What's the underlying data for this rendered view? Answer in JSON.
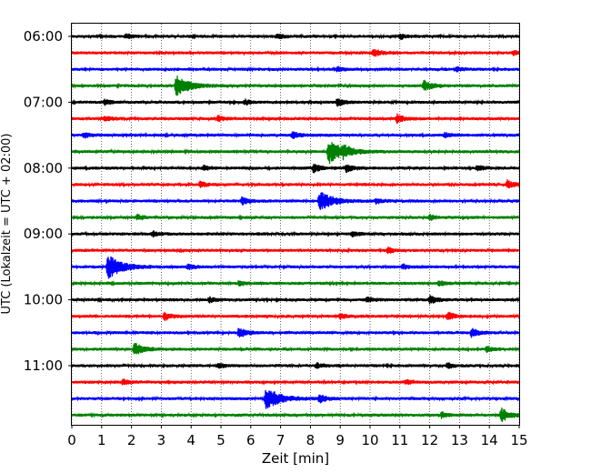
{
  "chart_data": {
    "type": "line",
    "title": "",
    "xlabel": "Zeit  [min]",
    "ylabel": "UTC (Lokalzeit = UTC + 02:00)",
    "xlim": [
      0,
      15
    ],
    "x_ticks": [
      "0",
      "1",
      "2",
      "3",
      "4",
      "5",
      "6",
      "7",
      "8",
      "9",
      "10",
      "11",
      "12",
      "13",
      "14",
      "15"
    ],
    "y_ticks": [
      "06:00",
      "07:00",
      "08:00",
      "09:00",
      "10:00",
      "11:00"
    ],
    "vertical_grid": "dotted",
    "trace_interval_minutes": 15,
    "trace_colors": [
      "#000000",
      "#ff0000",
      "#0000ff",
      "#008000"
    ],
    "traces": [
      {
        "start": "06:00",
        "events": [
          {
            "x": 1.8,
            "amp": 0.2
          },
          {
            "x": 6.9,
            "amp": 0.2
          },
          {
            "x": 11.0,
            "amp": 0.2
          }
        ]
      },
      {
        "start": "06:15",
        "events": [
          {
            "x": 10.1,
            "amp": 0.3
          },
          {
            "x": 14.8,
            "amp": 0.2
          }
        ]
      },
      {
        "start": "06:30",
        "events": [
          {
            "x": 8.9,
            "amp": 0.2
          },
          {
            "x": 12.9,
            "amp": 0.2
          }
        ]
      },
      {
        "start": "06:45",
        "events": [
          {
            "x": 3.5,
            "amp": 0.8
          },
          {
            "x": 11.8,
            "amp": 0.4
          }
        ]
      },
      {
        "start": "07:00",
        "events": [
          {
            "x": 1.1,
            "amp": 0.2
          },
          {
            "x": 5.8,
            "amp": 0.2
          },
          {
            "x": 8.9,
            "amp": 0.3
          }
        ]
      },
      {
        "start": "07:15",
        "events": [
          {
            "x": 1.1,
            "amp": 0.2
          },
          {
            "x": 4.9,
            "amp": 0.2
          },
          {
            "x": 10.9,
            "amp": 0.3
          }
        ]
      },
      {
        "start": "07:30",
        "events": [
          {
            "x": 0.4,
            "amp": 0.2
          },
          {
            "x": 7.4,
            "amp": 0.3
          },
          {
            "x": 12.5,
            "amp": 0.2
          }
        ]
      },
      {
        "start": "07:45",
        "events": [
          {
            "x": 8.6,
            "amp": 0.9
          },
          {
            "x": 9.1,
            "amp": 0.3
          }
        ]
      },
      {
        "start": "08:00",
        "events": [
          {
            "x": 4.4,
            "amp": 0.2
          },
          {
            "x": 8.1,
            "amp": 0.3
          },
          {
            "x": 9.2,
            "amp": 0.3
          },
          {
            "x": 13.6,
            "amp": 0.2
          }
        ]
      },
      {
        "start": "08:15",
        "events": [
          {
            "x": 4.3,
            "amp": 0.2
          },
          {
            "x": 14.6,
            "amp": 0.3
          }
        ]
      },
      {
        "start": "08:30",
        "events": [
          {
            "x": 5.7,
            "amp": 0.3
          },
          {
            "x": 8.3,
            "amp": 0.8
          },
          {
            "x": 10.2,
            "amp": 0.2
          }
        ]
      },
      {
        "start": "08:45",
        "events": [
          {
            "x": 2.2,
            "amp": 0.2
          },
          {
            "x": 12.0,
            "amp": 0.2
          }
        ]
      },
      {
        "start": "09:00",
        "events": [
          {
            "x": 2.7,
            "amp": 0.2
          },
          {
            "x": 9.4,
            "amp": 0.2
          }
        ]
      },
      {
        "start": "09:15",
        "events": [
          {
            "x": 10.6,
            "amp": 0.2
          }
        ]
      },
      {
        "start": "09:30",
        "events": [
          {
            "x": 1.2,
            "amp": 0.9
          },
          {
            "x": 3.9,
            "amp": 0.2
          },
          {
            "x": 11.1,
            "amp": 0.2
          }
        ]
      },
      {
        "start": "09:45",
        "events": [
          {
            "x": 5.6,
            "amp": 0.2
          },
          {
            "x": 12.3,
            "amp": 0.2
          }
        ]
      },
      {
        "start": "10:00",
        "events": [
          {
            "x": 4.6,
            "amp": 0.2
          },
          {
            "x": 9.9,
            "amp": 0.2
          },
          {
            "x": 12.0,
            "amp": 0.3
          }
        ]
      },
      {
        "start": "10:15",
        "events": [
          {
            "x": 3.1,
            "amp": 0.3
          },
          {
            "x": 9.0,
            "amp": 0.2
          },
          {
            "x": 12.6,
            "amp": 0.3
          }
        ]
      },
      {
        "start": "10:30",
        "events": [
          {
            "x": 5.6,
            "amp": 0.4
          },
          {
            "x": 13.4,
            "amp": 0.3
          }
        ]
      },
      {
        "start": "10:45",
        "events": [
          {
            "x": 2.1,
            "amp": 0.5
          },
          {
            "x": 13.9,
            "amp": 0.2
          }
        ]
      },
      {
        "start": "11:00",
        "events": [
          {
            "x": 4.9,
            "amp": 0.2
          },
          {
            "x": 8.2,
            "amp": 0.2
          },
          {
            "x": 12.6,
            "amp": 0.2
          }
        ]
      },
      {
        "start": "11:15",
        "events": [
          {
            "x": 1.7,
            "amp": 0.2
          },
          {
            "x": 11.2,
            "amp": 0.2
          }
        ]
      },
      {
        "start": "11:30",
        "events": [
          {
            "x": 6.5,
            "amp": 0.9
          },
          {
            "x": 8.3,
            "amp": 0.3
          }
        ]
      },
      {
        "start": "11:45",
        "events": [
          {
            "x": 12.4,
            "amp": 0.2
          },
          {
            "x": 14.4,
            "amp": 0.5
          }
        ]
      }
    ]
  }
}
